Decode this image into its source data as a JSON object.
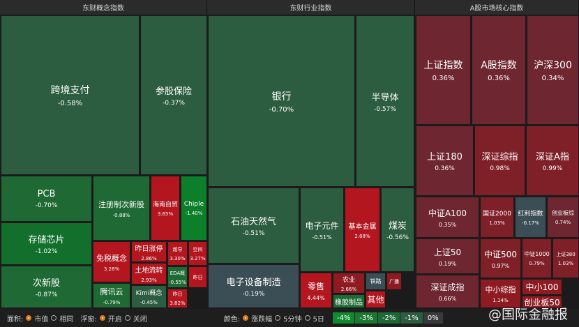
{
  "panels": [
    {
      "title": "东财概念指数",
      "tiles": [
        {
          "name": "跨境支付",
          "change": "-0.58%"
        },
        {
          "name": "参股保险",
          "change": "-0.37%"
        },
        {
          "name": "PCB",
          "change": "-0.70%"
        },
        {
          "name": "存储芯片",
          "change": "-1.02%"
        },
        {
          "name": "次新股",
          "change": "-0.87%"
        },
        {
          "name": "注册制次新股",
          "change": "-0.88%"
        },
        {
          "name": "海南自贸",
          "change": "3.65%"
        },
        {
          "name": "Chiple",
          "change": "-1.40%"
        },
        {
          "name": "免税概念",
          "change": "3.28%"
        },
        {
          "name": "昨日涨停",
          "change": "2.86%"
        },
        {
          "name": "土地流转",
          "change": "2.93%"
        },
        {
          "name": "腾讯云",
          "change": "-0.79%"
        },
        {
          "name": "Kimi概念",
          "change": "-0.45%"
        },
        {
          "name": "超导",
          "change": "3.30%"
        },
        {
          "name": "空间",
          "change": "3.27%"
        },
        {
          "name": "EDA概",
          "change": "-0.55%"
        },
        {
          "name": "昨日"
        },
        {
          "name": "昨日",
          "change": "3.82%"
        }
      ]
    },
    {
      "title": "东财行业指数",
      "tiles": [
        {
          "name": "银行",
          "change": "-0.70%"
        },
        {
          "name": "半导体",
          "change": "-0.57%"
        },
        {
          "name": "石油天然气",
          "change": "-0.51%"
        },
        {
          "name": "电子设备制造",
          "change": "-0.19%"
        },
        {
          "name": "电子元件",
          "change": "-0.51%"
        },
        {
          "name": "基本金属",
          "change": "2.68%"
        },
        {
          "name": "煤炭",
          "change": "-0.56%"
        },
        {
          "name": "零售",
          "change": "4.44%"
        },
        {
          "name": "农业",
          "change": "2.66%"
        },
        {
          "name": "橡胶制品"
        },
        {
          "name": "铁路"
        },
        {
          "name": "其他"
        },
        {
          "name": "广播"
        }
      ]
    },
    {
      "title": "A股市场核心指数",
      "tiles": [
        {
          "name": "上证指数",
          "change": "0.36%"
        },
        {
          "name": "A股指数",
          "change": "0.36%"
        },
        {
          "name": "沪深300",
          "change": "0.34%"
        },
        {
          "name": "上证180",
          "change": "0.36%"
        },
        {
          "name": "深证综指",
          "change": "0.98%"
        },
        {
          "name": "深证A指",
          "change": "0.99%"
        },
        {
          "name": "中证A100",
          "change": "0.35%"
        },
        {
          "name": "上证50",
          "change": "0.19%"
        },
        {
          "name": "深证成指",
          "change": "0.66%"
        },
        {
          "name": "国证2000",
          "change": "1.03%"
        },
        {
          "name": "红利指数",
          "change": "-0.17%"
        },
        {
          "name": "创业板综",
          "change": "0.74%"
        },
        {
          "name": "中证500",
          "change": "0.97%"
        },
        {
          "name": "中证1000",
          "change": "0.79%"
        },
        {
          "name": "上证380",
          "change": "1.03%"
        },
        {
          "name": "中小综指",
          "change": "1.14%"
        },
        {
          "name": "中小100"
        },
        {
          "name": "创业板50"
        }
      ]
    }
  ],
  "controls": [
    {
      "label": "面积:",
      "options": [
        "市值",
        "相同"
      ]
    },
    {
      "label": "浮窗:",
      "options": [
        "开启",
        "关闭"
      ]
    },
    {
      "label": "颜色:",
      "options": [
        "涨跌幅",
        "5分钟",
        "5日"
      ]
    }
  ],
  "legend": [
    "-4%",
    "-3%",
    "-2%",
    "-1%",
    "0%"
  ],
  "watermark": "@国际金融报"
}
